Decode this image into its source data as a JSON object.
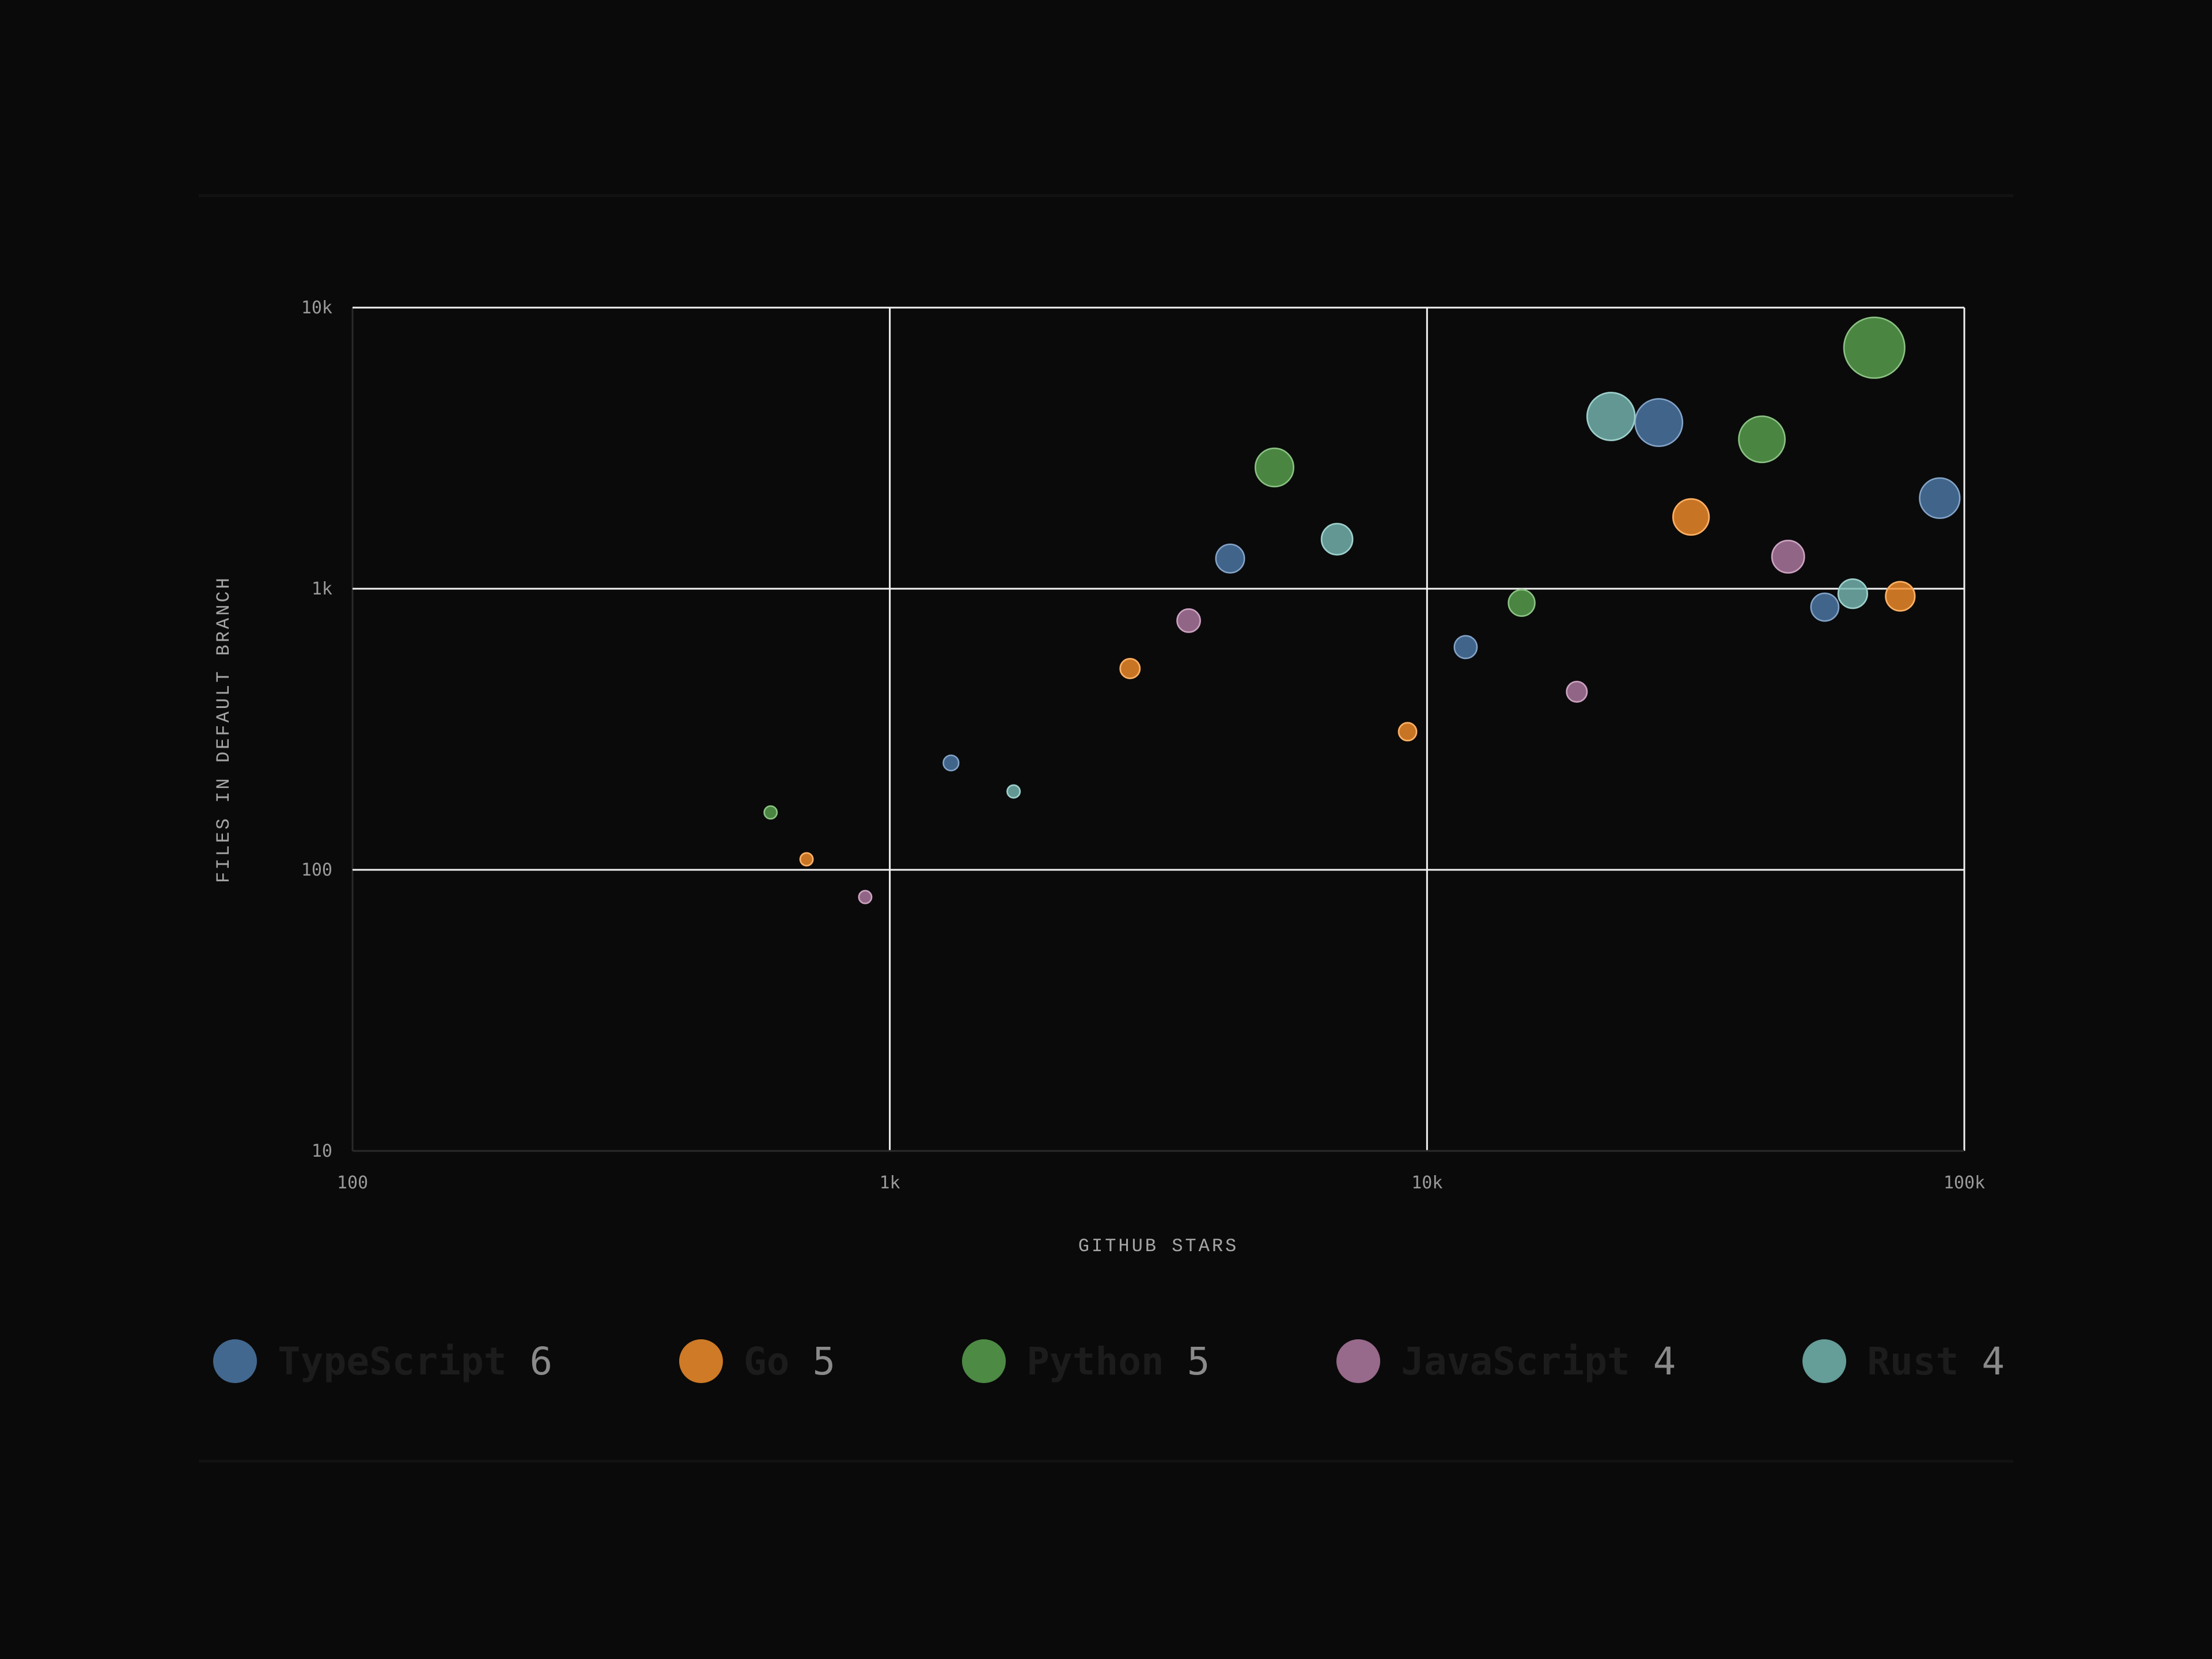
{
  "colors": {
    "background": "#0a0a0a",
    "grid": "#f2f2f2",
    "TypeScript": "#4e79a7",
    "Go": "#f28e2b",
    "Python": "#59a14f",
    "JavaScript": "#b07aa1",
    "Rust": "#76b7b2"
  },
  "chart_data": {
    "type": "scatter",
    "variant": "bubble",
    "xlabel": "GITHUB STARS",
    "ylabel": "FILES IN DEFAULT BRANCH",
    "xscale": "log",
    "yscale": "log",
    "xlim": [
      100,
      100000
    ],
    "ylim": [
      10,
      10000
    ],
    "x_ticks": [
      {
        "value": 100,
        "label": "100"
      },
      {
        "value": 1000,
        "label": "1k"
      },
      {
        "value": 10000,
        "label": "10k"
      },
      {
        "value": 100000,
        "label": "100k"
      }
    ],
    "y_ticks": [
      {
        "value": 10,
        "label": "10"
      },
      {
        "value": 100,
        "label": "100"
      },
      {
        "value": 1000,
        "label": "1k"
      },
      {
        "value": 10000,
        "label": "10k"
      }
    ],
    "grid": true,
    "legend_position": "bottom",
    "series": [
      {
        "name": "TypeScript",
        "count": "6",
        "color": "#4e79a7",
        "points": [
          {
            "x": 1300,
            "y": 240
          },
          {
            "x": 4300,
            "y": 1280
          },
          {
            "x": 11800,
            "y": 620
          },
          {
            "x": 27000,
            "y": 3900
          },
          {
            "x": 55000,
            "y": 860
          },
          {
            "x": 90000,
            "y": 2100
          }
        ]
      },
      {
        "name": "Go",
        "count": "5",
        "color": "#f28e2b",
        "points": [
          {
            "x": 700,
            "y": 109
          },
          {
            "x": 2800,
            "y": 520
          },
          {
            "x": 9200,
            "y": 310
          },
          {
            "x": 31000,
            "y": 1800
          },
          {
            "x": 76000,
            "y": 940
          }
        ]
      },
      {
        "name": "Python",
        "count": "5",
        "color": "#59a14f",
        "points": [
          {
            "x": 600,
            "y": 160
          },
          {
            "x": 5200,
            "y": 2700
          },
          {
            "x": 15000,
            "y": 890
          },
          {
            "x": 42000,
            "y": 3400
          },
          {
            "x": 68000,
            "y": 7200
          }
        ]
      },
      {
        "name": "JavaScript",
        "count": "4",
        "color": "#b07aa1",
        "points": [
          {
            "x": 900,
            "y": 80
          },
          {
            "x": 3600,
            "y": 770
          },
          {
            "x": 19000,
            "y": 430
          },
          {
            "x": 47000,
            "y": 1300
          }
        ]
      },
      {
        "name": "Rust",
        "count": "4",
        "color": "#76b7b2",
        "points": [
          {
            "x": 1700,
            "y": 190
          },
          {
            "x": 6800,
            "y": 1500
          },
          {
            "x": 22000,
            "y": 4100
          },
          {
            "x": 62000,
            "y": 960
          }
        ]
      }
    ]
  }
}
